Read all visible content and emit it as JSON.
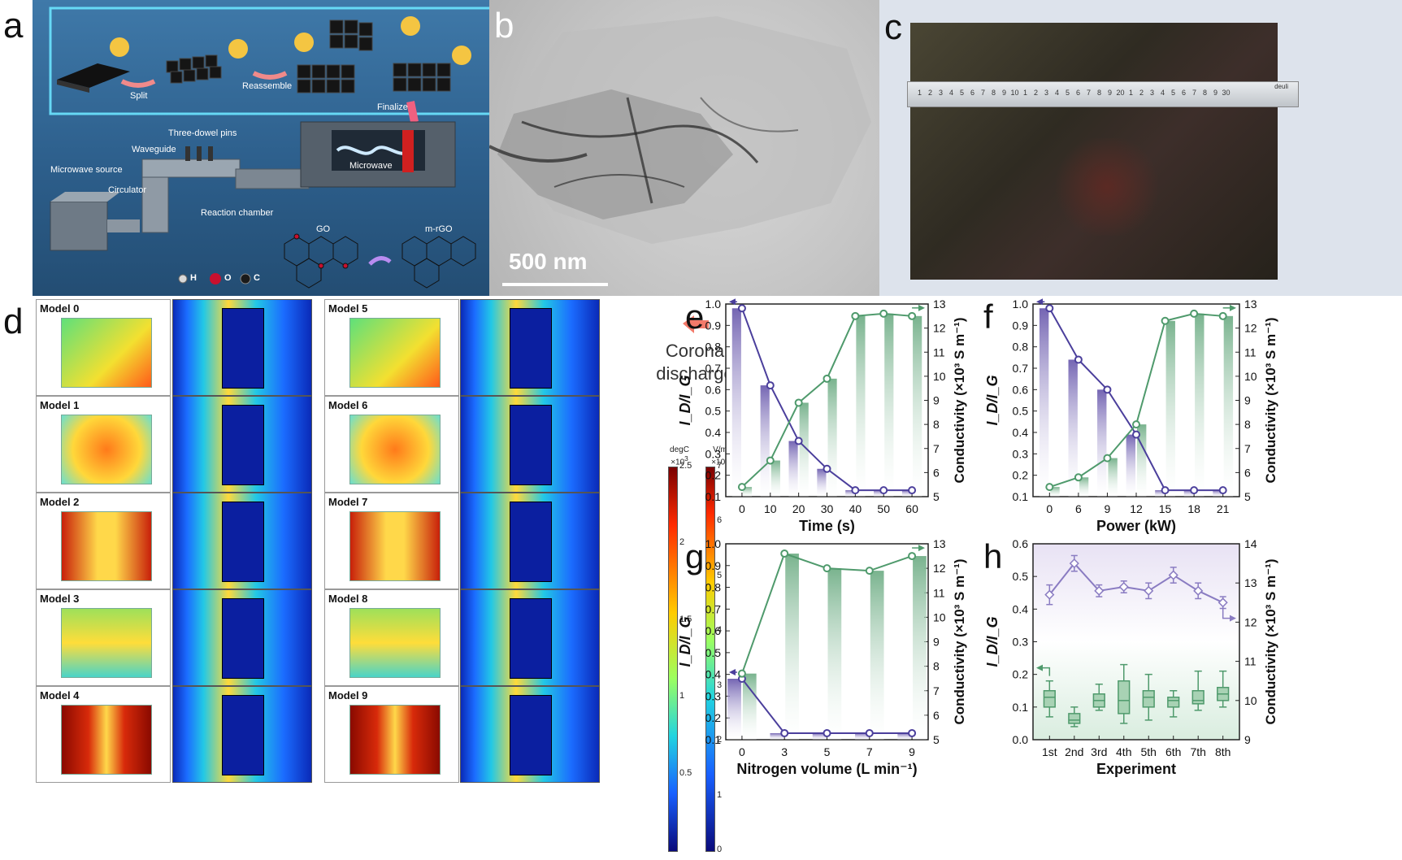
{
  "panels": {
    "a": {
      "letter": "a",
      "labels": {
        "split": "Split",
        "reassemble": "Reassemble",
        "finalize": "Finalize",
        "three_dowel": "Three-dowel pins",
        "waveguide": "Waveguide",
        "microwave_source": "Microwave source",
        "circulator": "Circulator",
        "reaction_chamber": "Reaction chamber",
        "microwave": "Microwave",
        "go": "GO",
        "mrgo": "m-rGO",
        "legend_h": "H",
        "legend_o": "O",
        "legend_c": "C"
      },
      "colors": {
        "bg": "#2d5f8c",
        "h": "#d9d9d9",
        "o": "#c8102e",
        "c": "#1a1a1a",
        "frame": "#6ce4ff"
      }
    },
    "b": {
      "letter": "b",
      "scale_bar": "500 nm"
    },
    "c": {
      "letter": "c",
      "ruler_numbers": [
        "1",
        "2",
        "3",
        "4",
        "5",
        "6",
        "7",
        "8",
        "9",
        "10",
        "1",
        "2",
        "3",
        "4",
        "5",
        "6",
        "7",
        "8",
        "9",
        "20",
        "1",
        "2",
        "3",
        "4",
        "5",
        "6",
        "7",
        "8",
        "9",
        "30"
      ],
      "ruler_brand": "deuli"
    },
    "d": {
      "letter": "d",
      "left_models": [
        "Model 0",
        "Model 1",
        "Model 2",
        "Model 3",
        "Model 4"
      ],
      "right_models": [
        "Model 5",
        "Model 6",
        "Model 7",
        "Model 8",
        "Model 9"
      ],
      "legend_text": [
        "Corona",
        "discharge"
      ],
      "colorbar_temp": {
        "unit": "degC",
        "scale": "×10",
        "scale_exp": "3",
        "ticks": [
          "2.5",
          "2",
          "1.5",
          "1",
          "0.5"
        ]
      },
      "colorbar_field": {
        "unit": "V/m",
        "scale": "×10",
        "scale_exp": "4",
        "ticks": [
          "7",
          "6",
          "5",
          "4",
          "3",
          "2",
          "1",
          "0"
        ]
      }
    }
  },
  "chart_data": [
    {
      "panel": "e",
      "type": "line",
      "x_categories": [
        "0",
        "10",
        "20",
        "30",
        "40",
        "50",
        "60"
      ],
      "xlabel": "Time (s)",
      "ylabel_left": "I_D/I_G",
      "ylabel_right": "Conductivity (×10³ S m⁻¹)",
      "ylim_left": [
        0.1,
        1.0
      ],
      "ylim_right": [
        5,
        13
      ],
      "yticks_left": [
        "0.1",
        "0.2",
        "0.3",
        "0.4",
        "0.5",
        "0.6",
        "0.7",
        "0.8",
        "0.9",
        "1.0"
      ],
      "yticks_right": [
        "5",
        "6",
        "7",
        "8",
        "9",
        "10",
        "11",
        "12",
        "13"
      ],
      "series": [
        {
          "axis": "left",
          "color": "#4b3f9c",
          "values": [
            0.98,
            0.62,
            0.36,
            0.23,
            0.13,
            0.13,
            0.13
          ]
        },
        {
          "axis": "right",
          "color": "#4f9a6c",
          "values": [
            5.4,
            6.5,
            8.9,
            9.9,
            12.5,
            12.6,
            12.5
          ]
        }
      ]
    },
    {
      "panel": "f",
      "type": "line",
      "x_categories": [
        "0",
        "6",
        "9",
        "12",
        "15",
        "18",
        "21"
      ],
      "xlabel": "Power (kW)",
      "ylabel_left": "I_D/I_G",
      "ylabel_right": "Conductivity (×10³ S m⁻¹)",
      "ylim_left": [
        0.1,
        1.0
      ],
      "ylim_right": [
        5,
        13
      ],
      "yticks_left": [
        "0.1",
        "0.2",
        "0.3",
        "0.4",
        "0.5",
        "0.6",
        "0.7",
        "0.8",
        "0.9",
        "1.0"
      ],
      "yticks_right": [
        "5",
        "6",
        "7",
        "8",
        "9",
        "10",
        "11",
        "12",
        "13"
      ],
      "series": [
        {
          "axis": "left",
          "color": "#4b3f9c",
          "values": [
            0.98,
            0.74,
            0.6,
            0.39,
            0.13,
            0.13,
            0.13
          ]
        },
        {
          "axis": "right",
          "color": "#4f9a6c",
          "values": [
            5.4,
            5.8,
            6.6,
            8.0,
            12.3,
            12.6,
            12.5
          ]
        }
      ]
    },
    {
      "panel": "g",
      "type": "line",
      "x_categories": [
        "0",
        "3",
        "5",
        "7",
        "9"
      ],
      "xlabel": "Nitrogen volume (L min⁻¹)",
      "ylabel_left": "I_D/I_G",
      "ylabel_right": "Conductivity (×10³ S m⁻¹)",
      "ylim_left": [
        0.1,
        1.0
      ],
      "ylim_right": [
        5,
        13
      ],
      "yticks_left": [
        "0.1",
        "0.2",
        "0.3",
        "0.4",
        "0.5",
        "0.6",
        "0.7",
        "0.8",
        "0.9",
        "1.0"
      ],
      "yticks_right": [
        "5",
        "6",
        "7",
        "8",
        "9",
        "10",
        "11",
        "12",
        "13"
      ],
      "series": [
        {
          "axis": "left",
          "color": "#4b3f9c",
          "values": [
            0.38,
            0.13,
            0.13,
            0.13,
            0.13
          ]
        },
        {
          "axis": "right",
          "color": "#4f9a6c",
          "values": [
            7.7,
            12.6,
            12.0,
            11.9,
            12.5
          ]
        }
      ]
    },
    {
      "panel": "h",
      "type": "box",
      "x_categories": [
        "1st",
        "2nd",
        "3rd",
        "4th",
        "5th",
        "6th",
        "7th",
        "8th"
      ],
      "xlabel": "Experiment",
      "ylabel_left": "I_D/I_G",
      "ylabel_right": "Conductivity (×10³ S m⁻¹)",
      "ylim_left": [
        0.0,
        0.6
      ],
      "ylim_right": [
        9,
        14
      ],
      "yticks_left": [
        "0.0",
        "0.1",
        "0.2",
        "0.3",
        "0.4",
        "0.5",
        "0.6"
      ],
      "yticks_right": [
        "9",
        "10",
        "11",
        "12",
        "13",
        "14"
      ],
      "series": [
        {
          "axis": "right",
          "color": "#8a7cc2",
          "values": [
            12.7,
            13.5,
            12.8,
            12.9,
            12.8,
            13.2,
            12.8,
            12.5
          ],
          "errors": [
            0.25,
            0.2,
            0.15,
            0.15,
            0.2,
            0.2,
            0.2,
            0.15
          ]
        },
        {
          "axis": "left",
          "color": "#4f9a6c",
          "boxes": [
            {
              "min": 0.07,
              "q1": 0.1,
              "median": 0.13,
              "q3": 0.15,
              "max": 0.18
            },
            {
              "min": 0.04,
              "q1": 0.05,
              "median": 0.06,
              "q3": 0.08,
              "max": 0.1
            },
            {
              "min": 0.09,
              "q1": 0.1,
              "median": 0.12,
              "q3": 0.14,
              "max": 0.17
            },
            {
              "min": 0.05,
              "q1": 0.08,
              "median": 0.12,
              "q3": 0.18,
              "max": 0.23
            },
            {
              "min": 0.06,
              "q1": 0.1,
              "median": 0.13,
              "q3": 0.15,
              "max": 0.2
            },
            {
              "min": 0.07,
              "q1": 0.1,
              "median": 0.12,
              "q3": 0.13,
              "max": 0.15
            },
            {
              "min": 0.09,
              "q1": 0.11,
              "median": 0.12,
              "q3": 0.15,
              "max": 0.21
            },
            {
              "min": 0.1,
              "q1": 0.12,
              "median": 0.14,
              "q3": 0.16,
              "max": 0.21
            }
          ]
        }
      ]
    }
  ]
}
